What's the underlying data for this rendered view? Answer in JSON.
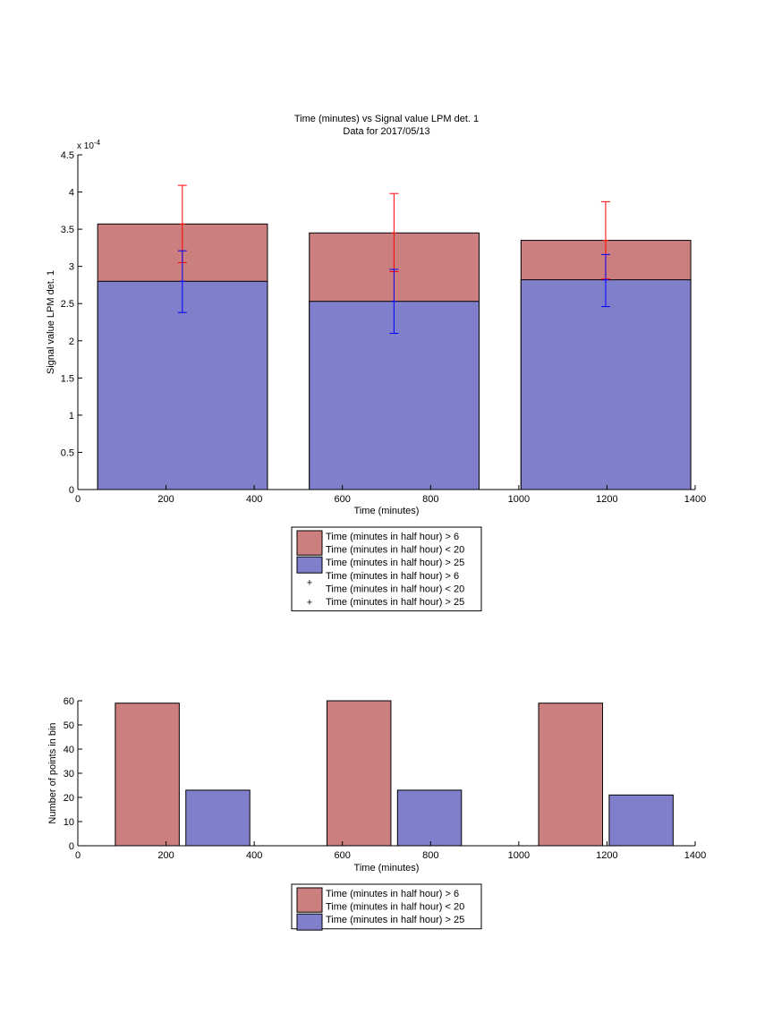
{
  "chart_data": [
    {
      "type": "bar",
      "title": "Time (minutes) vs Signal value LPM det. 1",
      "subtitle": "Data for 2017/05/13",
      "xlabel": "Time (minutes)",
      "ylabel": "Signal value LPM det. 1",
      "exponent_label": "x 10",
      "exponent_power": "-4",
      "xlim": [
        0,
        1400
      ],
      "ylim": [
        0,
        4.5
      ],
      "xticks": [
        "0",
        "200",
        "400",
        "600",
        "800",
        "1000",
        "1200",
        "1400"
      ],
      "yticks": [
        "0",
        "0.5",
        "1",
        "1.5",
        "2",
        "2.5",
        "3",
        "3.5",
        "4",
        "4.5"
      ],
      "grid": false,
      "legend_position": "below chart",
      "bars": [
        {
          "x_start": 45,
          "x_end": 430,
          "red_value": 3.57,
          "blue_value": 2.8
        },
        {
          "x_start": 525,
          "x_end": 910,
          "red_value": 3.45,
          "blue_value": 2.53
        },
        {
          "x_start": 1005,
          "x_end": 1390,
          "red_value": 3.35,
          "blue_value": 2.82
        }
      ],
      "error_bars": [
        {
          "x": 237,
          "color": "#ff0000",
          "mean": 3.57,
          "low": 3.05,
          "high": 4.09
        },
        {
          "x": 237,
          "color": "#0000ff",
          "mean": 2.8,
          "low": 2.38,
          "high": 3.21
        },
        {
          "x": 717,
          "color": "#ff0000",
          "mean": 3.45,
          "low": 2.93,
          "high": 3.98
        },
        {
          "x": 717,
          "color": "#0000ff",
          "mean": 2.53,
          "low": 2.1,
          "high": 2.96
        },
        {
          "x": 1197,
          "color": "#ff0000",
          "mean": 3.35,
          "low": 2.83,
          "high": 3.87
        },
        {
          "x": 1197,
          "color": "#0000ff",
          "mean": 2.82,
          "low": 2.46,
          "high": 3.16
        }
      ],
      "legend": [
        {
          "kind": "patch",
          "color": "#cc7f7f",
          "lines": [
            "Time (minutes in half hour) > 6",
            "Time (minutes in half hour) < 20"
          ]
        },
        {
          "kind": "patch",
          "color": "#7f7fcc",
          "lines": [
            "Time (minutes in half hour) > 25"
          ]
        },
        {
          "kind": "marker",
          "color": "#ff0000",
          "lines": [
            "Time (minutes in half hour) > 6",
            "Time (minutes in half hour) < 20"
          ]
        },
        {
          "kind": "marker",
          "color": "#0000ff",
          "lines": [
            "Time (minutes in half hour) > 25"
          ]
        }
      ]
    },
    {
      "type": "bar",
      "xlabel": "Time (minutes)",
      "ylabel": "Number of points in bin",
      "xlim": [
        0,
        1400
      ],
      "ylim": [
        0,
        60
      ],
      "xticks": [
        "0",
        "200",
        "400",
        "600",
        "800",
        "1000",
        "1200",
        "1400"
      ],
      "yticks": [
        "0",
        "10",
        "20",
        "30",
        "40",
        "50",
        "60"
      ],
      "grid": false,
      "legend_position": "below chart",
      "bars": [
        {
          "x_start": 85,
          "x_end": 230,
          "value": 59,
          "color": "#cc7f7f"
        },
        {
          "x_start": 245,
          "x_end": 390,
          "value": 23,
          "color": "#7f7fcc"
        },
        {
          "x_start": 565,
          "x_end": 710,
          "value": 60,
          "color": "#cc7f7f"
        },
        {
          "x_start": 725,
          "x_end": 870,
          "value": 23,
          "color": "#7f7fcc"
        },
        {
          "x_start": 1045,
          "x_end": 1190,
          "value": 59,
          "color": "#cc7f7f"
        },
        {
          "x_start": 1205,
          "x_end": 1350,
          "value": 21,
          "color": "#7f7fcc"
        }
      ],
      "legend": [
        {
          "kind": "patch",
          "color": "#cc7f7f",
          "lines": [
            "Time (minutes in half hour) > 6",
            "Time (minutes in half hour) < 20"
          ]
        },
        {
          "kind": "patch",
          "color": "#7f7fcc",
          "lines": [
            "Time (minutes in half hour) > 25"
          ]
        }
      ]
    }
  ]
}
